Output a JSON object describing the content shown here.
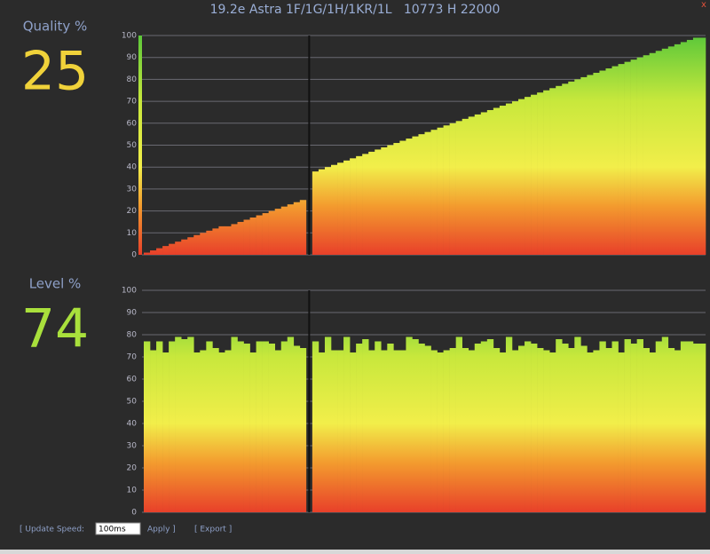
{
  "header": {
    "title": "19.2e Astra 1F/1G/1H/1KR/1L   10773 H 22000",
    "close": "x"
  },
  "readouts": [
    {
      "label": "Quality %",
      "value": 25,
      "color": "#f0d23a"
    },
    {
      "label": "Level %",
      "value": 74,
      "color": "#a9e03c"
    }
  ],
  "chart_data": [
    {
      "type": "bar",
      "ylim": [
        0,
        100
      ],
      "yticks": [
        0,
        10,
        20,
        30,
        40,
        50,
        60,
        70,
        80,
        90,
        100
      ],
      "grid": true,
      "values": [
        1,
        2,
        3,
        4,
        5,
        6,
        7,
        8,
        9,
        10,
        11,
        12,
        13,
        13,
        14,
        15,
        16,
        17,
        18,
        19,
        20,
        21,
        22,
        23,
        24,
        25,
        null,
        38,
        39,
        40,
        41,
        42,
        43,
        44,
        45,
        46,
        47,
        48,
        49,
        50,
        51,
        52,
        53,
        54,
        55,
        56,
        57,
        58,
        59,
        60,
        61,
        62,
        63,
        64,
        65,
        66,
        67,
        68,
        69,
        70,
        71,
        72,
        73,
        74,
        75,
        76,
        77,
        78,
        79,
        80,
        81,
        82,
        83,
        84,
        85,
        86,
        87,
        88,
        89,
        90,
        91,
        92,
        93,
        94,
        95,
        96,
        97,
        98,
        99,
        99
      ]
    },
    {
      "type": "bar",
      "ylim": [
        0,
        100
      ],
      "yticks": [
        0,
        10,
        20,
        30,
        40,
        50,
        60,
        70,
        80,
        90,
        100
      ],
      "grid": true,
      "values": [
        77,
        73,
        77,
        72,
        77,
        79,
        78,
        79,
        72,
        73,
        77,
        74,
        72,
        73,
        79,
        77,
        76,
        72,
        77,
        77,
        76,
        73,
        77,
        79,
        75,
        74,
        null,
        77,
        72,
        79,
        73,
        73,
        79,
        72,
        76,
        78,
        73,
        77,
        73,
        76,
        73,
        73,
        79,
        78,
        76,
        75,
        73,
        72,
        73,
        74,
        79,
        74,
        73,
        76,
        77,
        78,
        74,
        72,
        79,
        73,
        75,
        77,
        76,
        74,
        73,
        72,
        78,
        76,
        74,
        79,
        75,
        72,
        73,
        77,
        74,
        77,
        72,
        78,
        76,
        78,
        74,
        72,
        77,
        79,
        74,
        73,
        77,
        77,
        76,
        76
      ]
    }
  ],
  "controls": {
    "update_speed_label": "[ Update Speed:",
    "update_speed_value": "100ms",
    "apply": "Apply ]",
    "export": "[ Export ]"
  }
}
